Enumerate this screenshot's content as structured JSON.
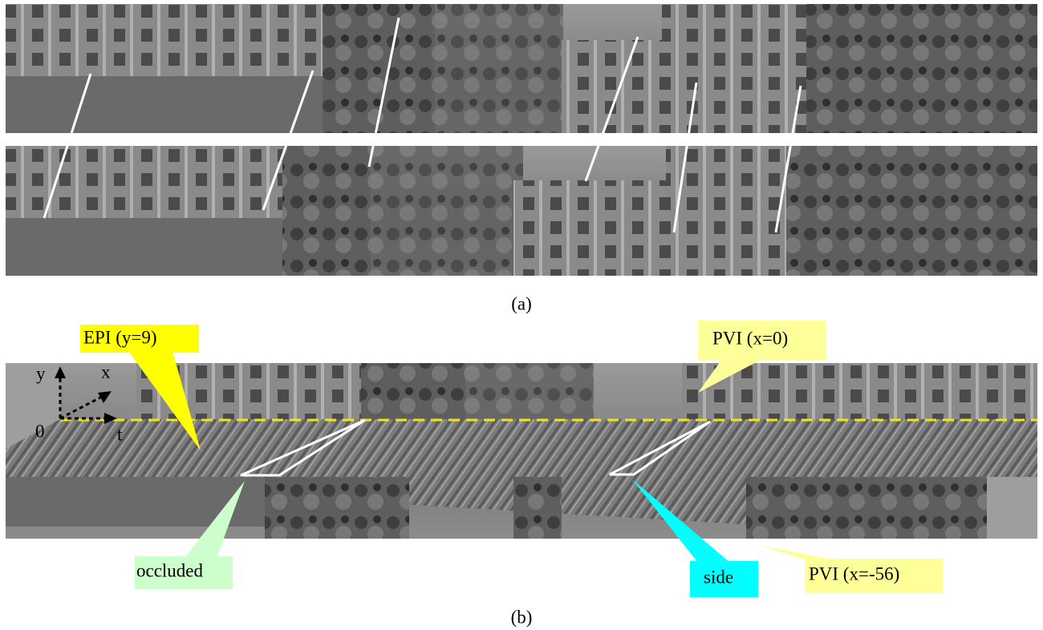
{
  "panel_a": {
    "caption": "(a)"
  },
  "panel_b": {
    "caption": "(b)",
    "axes": {
      "y": "y",
      "x": "x",
      "origin": "0",
      "t": "t"
    },
    "callouts": [
      {
        "label": "EPI (y=9)"
      },
      {
        "label": "PVI (x=0)"
      },
      {
        "label": "occluded"
      },
      {
        "label": "side"
      },
      {
        "label": "PVI (x=-56)"
      }
    ]
  }
}
